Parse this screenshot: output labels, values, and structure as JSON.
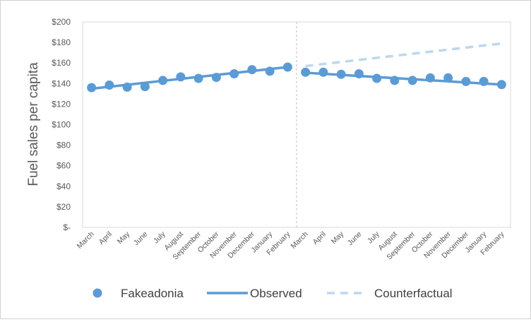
{
  "chart_data": {
    "type": "line",
    "title": "",
    "xlabel": "",
    "ylabel": "Fuel sales per capita",
    "ylim": [
      0,
      200
    ],
    "yticks": [
      0,
      20,
      40,
      60,
      80,
      100,
      120,
      140,
      160,
      180,
      200
    ],
    "ytick_labels": [
      "$-",
      "$20",
      "$40",
      "$60",
      "$80",
      "$100",
      "$120",
      "$140",
      "$160",
      "$180",
      "$200"
    ],
    "categories": [
      "March",
      "April",
      "May",
      "June",
      "July",
      "August",
      "September",
      "October",
      "November",
      "December",
      "January",
      "February",
      "March",
      "April",
      "May",
      "June",
      "July",
      "August",
      "September",
      "October",
      "November",
      "December",
      "January",
      "February"
    ],
    "intervention_index": 12,
    "grid": false,
    "legend_position": "bottom",
    "series": [
      {
        "name": "Fakeadonia",
        "style": "markers",
        "color": "#5b9bd5",
        "values": [
          136,
          138.5,
          136.5,
          137,
          143,
          146.5,
          145,
          146,
          149.5,
          153.5,
          152,
          156,
          151,
          151,
          149,
          149.5,
          145,
          143,
          143,
          145.5,
          145.5,
          142,
          142,
          139
        ]
      },
      {
        "name": "Observed",
        "style": "solid",
        "color": "#5b9bd5",
        "segments": [
          {
            "x_start": "March",
            "x_end": "February",
            "y_start": 135,
            "y_end": 156,
            "index_start": 0,
            "index_end": 11
          },
          {
            "x_start": "March",
            "x_end": "February",
            "y_start": 150.5,
            "y_end": 139,
            "index_start": 12,
            "index_end": 23
          }
        ]
      },
      {
        "name": "Counterfactual",
        "style": "dashed",
        "color": "#bdd7ee",
        "segments": [
          {
            "x_start": "March",
            "x_end": "February",
            "y_start": 157,
            "y_end": 179,
            "index_start": 12,
            "index_end": 23
          }
        ]
      }
    ]
  }
}
